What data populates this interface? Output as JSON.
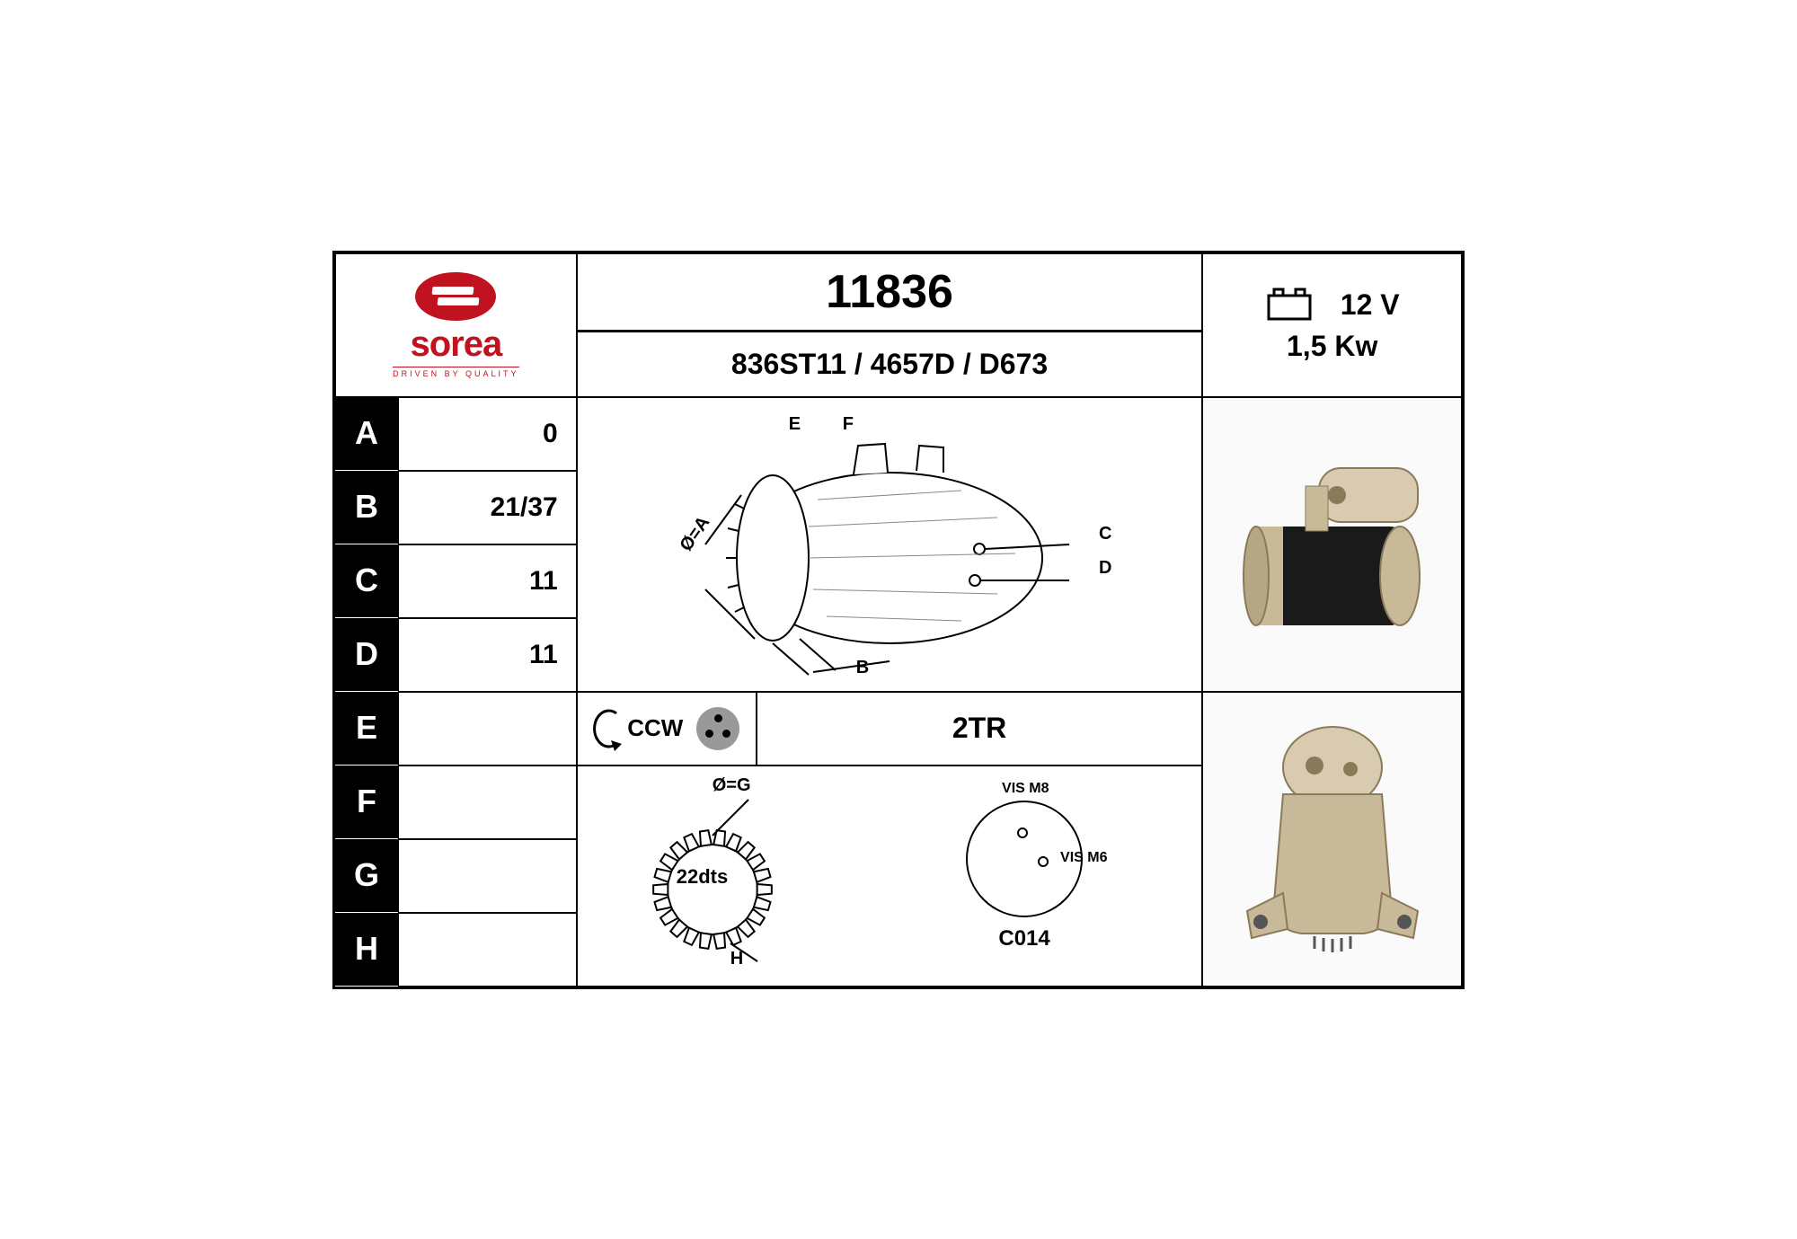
{
  "brand": {
    "name": "sorea",
    "tagline": "DRIVEN BY QUALITY",
    "color": "#c1121f"
  },
  "header": {
    "part_number": "11836",
    "references": "836ST11 / 4657D / D673",
    "voltage": "12 V",
    "power": "1,5 Kw"
  },
  "params": {
    "A": "0",
    "B": "21/37",
    "C": "11",
    "D": "11",
    "E": "",
    "F": "",
    "G": "",
    "H": ""
  },
  "rotation": {
    "direction": "CCW",
    "holes_label": "2TR"
  },
  "gear": {
    "teeth_label": "22dts",
    "dia_label": "Ø=G",
    "h_label": "H"
  },
  "terminals": {
    "t1": "VIS M8",
    "t2": "VIS M6",
    "code": "C014"
  },
  "diagram_labels": {
    "E": "E",
    "F": "F",
    "C": "C",
    "D": "D",
    "B": "B",
    "dia": "Ø=A"
  },
  "colors": {
    "black": "#000000",
    "white": "#ffffff",
    "grey": "#999999",
    "motor_body": "#1a1a1a",
    "motor_metal": "#c8b998"
  }
}
